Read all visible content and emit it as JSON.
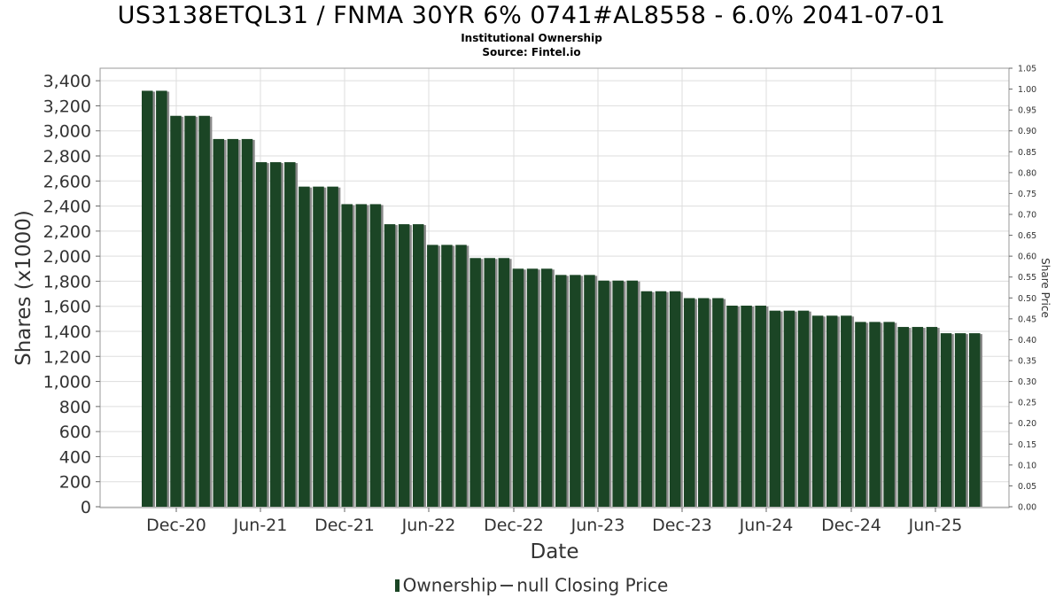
{
  "header": {
    "title": "US3138ETQL31 / FNMA 30YR 6% 0741#AL8558 - 6.0% 2041-07-01",
    "subtitle": "Institutional Ownership",
    "source": "Source: Fintel.io"
  },
  "legend": {
    "ownership": "Ownership",
    "price": "null Closing Price"
  },
  "colors": {
    "bar": "#1b4525",
    "bar_shadow": "#8a8a8a",
    "grid": "#dddddd"
  },
  "chart_data": {
    "type": "bar",
    "title": "US3138ETQL31 / FNMA 30YR 6% 0741#AL8558 - 6.0% 2041-07-01",
    "xlabel": "Date",
    "ylabel": "Shares (x1000)",
    "y2label": "Share Price",
    "ylim": [
      0,
      3500
    ],
    "y2lim": [
      0,
      1.05
    ],
    "yticks": [
      "0",
      "200",
      "400",
      "600",
      "800",
      "1,000",
      "1,200",
      "1,400",
      "1,600",
      "1,800",
      "2,000",
      "2,200",
      "2,400",
      "2,600",
      "2,800",
      "3,000",
      "3,200",
      "3,400"
    ],
    "y2ticks": [
      "0.00",
      "0.05",
      "0.10",
      "0.15",
      "0.20",
      "0.25",
      "0.30",
      "0.35",
      "0.40",
      "0.45",
      "0.50",
      "0.55",
      "0.60",
      "0.65",
      "0.70",
      "0.75",
      "0.80",
      "0.85",
      "0.90",
      "0.95",
      "1.00",
      "1.05"
    ],
    "xticks": [
      "Dec-20",
      "Jun-21",
      "Dec-21",
      "Jun-22",
      "Dec-22",
      "Jun-23",
      "Dec-23",
      "Jun-24",
      "Dec-24",
      "Jun-25"
    ],
    "grid": true,
    "legend_position": "bottom",
    "series": [
      {
        "name": "Ownership",
        "values": [
          3320,
          3320,
          3120,
          3120,
          3120,
          2935,
          2935,
          2935,
          2750,
          2750,
          2750,
          2555,
          2555,
          2555,
          2415,
          2415,
          2415,
          2255,
          2255,
          2255,
          2090,
          2090,
          2090,
          1985,
          1985,
          1985,
          1900,
          1900,
          1900,
          1850,
          1850,
          1850,
          1805,
          1805,
          1805,
          1720,
          1720,
          1720,
          1665,
          1665,
          1665,
          1605,
          1605,
          1605,
          1565,
          1565,
          1565,
          1525,
          1525,
          1525,
          1475,
          1475,
          1475,
          1435,
          1435,
          1435,
          1385,
          1385,
          1385
        ]
      }
    ]
  }
}
